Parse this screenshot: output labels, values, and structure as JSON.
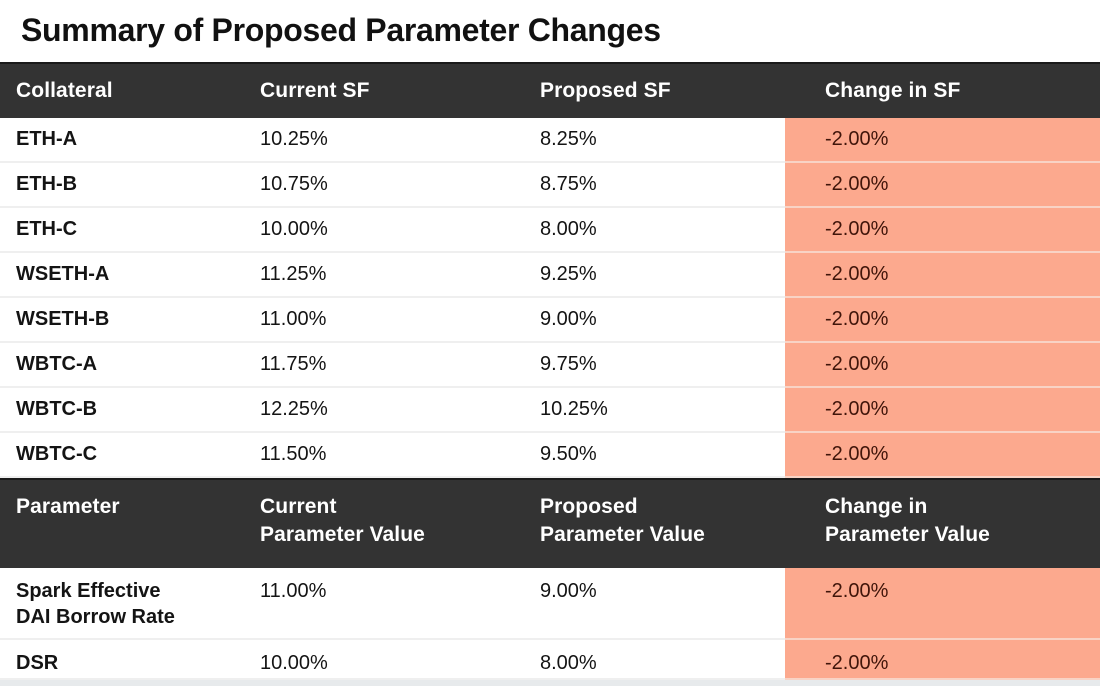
{
  "title": "Summary of Proposed Parameter Changes",
  "colors": {
    "header_bg": "#333333",
    "header_text": "#FFFFFF",
    "highlight_bg": "#FCA98E",
    "highlight_text": "#40150A",
    "body_text": "#141414",
    "row_divider": "#EFEFEF",
    "highlight_divider": "#F8D3C5",
    "bottom_strip": "#E7EAEC"
  },
  "sf_table": {
    "headers": [
      "Collateral",
      "Current SF",
      "Proposed SF",
      "Change in SF"
    ],
    "rows": [
      {
        "collateral": "ETH-A",
        "current": "10.25%",
        "proposed": "8.25%",
        "change": "-2.00%"
      },
      {
        "collateral": "ETH-B",
        "current": "10.75%",
        "proposed": "8.75%",
        "change": "-2.00%"
      },
      {
        "collateral": "ETH-C",
        "current": "10.00%",
        "proposed": "8.00%",
        "change": "-2.00%"
      },
      {
        "collateral": "WSETH-A",
        "current": "11.25%",
        "proposed": "9.25%",
        "change": "-2.00%"
      },
      {
        "collateral": "WSETH-B",
        "current": "11.00%",
        "proposed": "9.00%",
        "change": "-2.00%"
      },
      {
        "collateral": "WBTC-A",
        "current": "11.75%",
        "proposed": "9.75%",
        "change": "-2.00%"
      },
      {
        "collateral": "WBTC-B",
        "current": "12.25%",
        "proposed": "10.25%",
        "change": "-2.00%"
      },
      {
        "collateral": "WBTC-C",
        "current": "11.50%",
        "proposed": "9.50%",
        "change": "-2.00%"
      }
    ]
  },
  "param_table": {
    "headers": [
      "Parameter",
      "Current\nParameter Value",
      "Proposed\nParameter Value",
      "Change in\nParameter Value"
    ],
    "rows": [
      {
        "parameter": "Spark Effective\nDAI Borrow Rate",
        "current": "11.00%",
        "proposed": "9.00%",
        "change": "-2.00%"
      },
      {
        "parameter": "DSR",
        "current": "10.00%",
        "proposed": "8.00%",
        "change": "-2.00%"
      }
    ]
  },
  "chart_data": [
    {
      "type": "table",
      "title": "Summary of Proposed Parameter Changes",
      "columns": [
        "Collateral",
        "Current SF",
        "Proposed SF",
        "Change in SF"
      ],
      "rows": [
        [
          "ETH-A",
          "10.25%",
          "8.25%",
          "-2.00%"
        ],
        [
          "ETH-B",
          "10.75%",
          "8.75%",
          "-2.00%"
        ],
        [
          "ETH-C",
          "10.00%",
          "8.00%",
          "-2.00%"
        ],
        [
          "WSETH-A",
          "11.25%",
          "9.25%",
          "-2.00%"
        ],
        [
          "WSETH-B",
          "11.00%",
          "9.00%",
          "-2.00%"
        ],
        [
          "WBTC-A",
          "11.75%",
          "9.75%",
          "-2.00%"
        ],
        [
          "WBTC-B",
          "12.25%",
          "10.25%",
          "-2.00%"
        ],
        [
          "WBTC-C",
          "11.50%",
          "9.50%",
          "-2.00%"
        ]
      ],
      "layout_hints": {
        "highlight_column": "Change in SF",
        "highlight_color": "#FCA98E"
      }
    },
    {
      "type": "table",
      "columns": [
        "Parameter",
        "Current Parameter Value",
        "Proposed Parameter Value",
        "Change in Parameter Value"
      ],
      "rows": [
        [
          "Spark Effective DAI Borrow Rate",
          "11.00%",
          "9.00%",
          "-2.00%"
        ],
        [
          "DSR",
          "10.00%",
          "8.00%",
          "-2.00%"
        ]
      ],
      "layout_hints": {
        "highlight_column": "Change in Parameter Value",
        "highlight_color": "#FCA98E"
      }
    }
  ]
}
